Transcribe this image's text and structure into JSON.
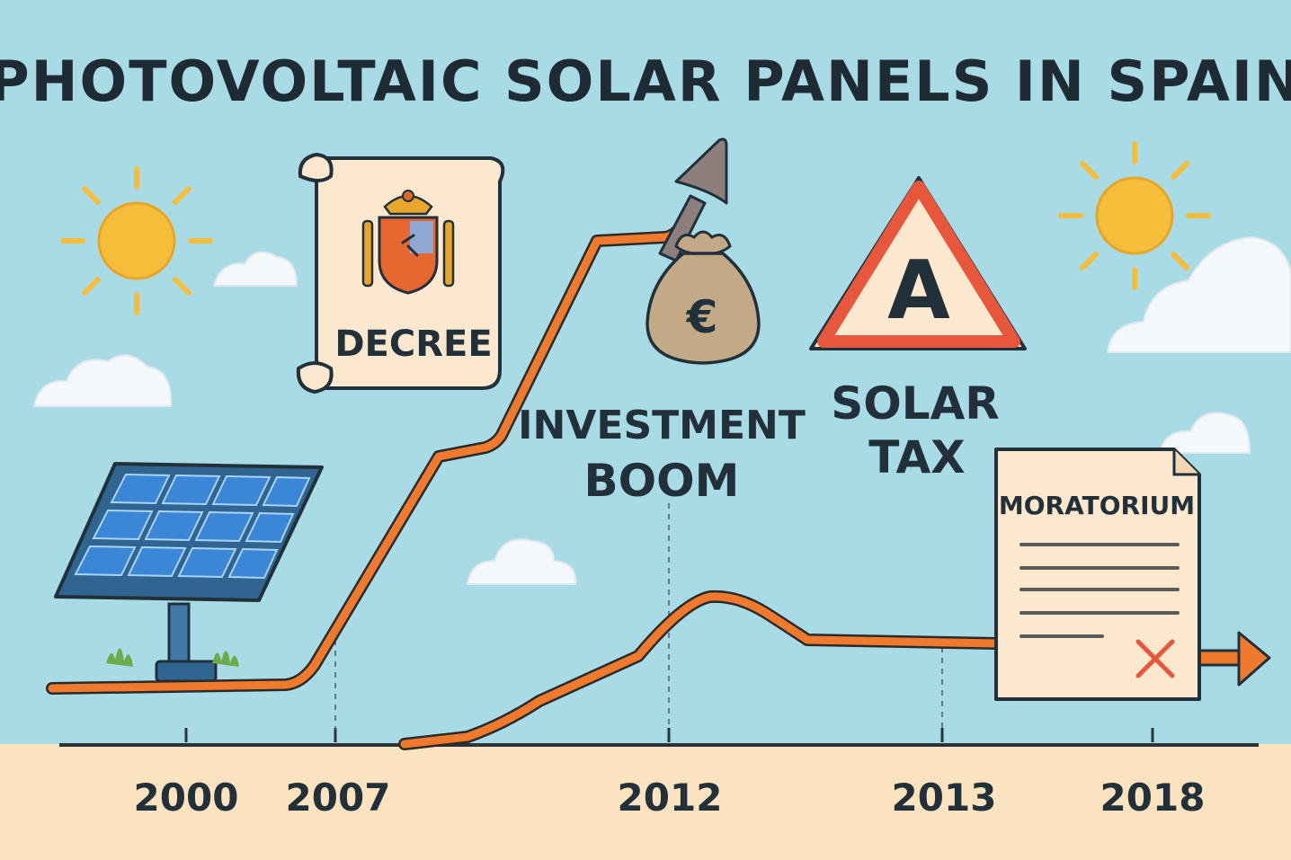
{
  "title": "PHOTOVOLTAIC SOLAR PANELS IN SPAIN",
  "decree_label": "DECREE",
  "investment_label": [
    "INVESTMENT",
    "BOOM"
  ],
  "solar_tax_label": [
    "SOLAR",
    "TAX"
  ],
  "warning_sign_letter": "A",
  "moratorium_label": "MORATORIUM",
  "currency_symbol": "€",
  "timeline_years": [
    "2000",
    "2007",
    "2012",
    "2013",
    "2018"
  ],
  "icons": [
    "sun-icon",
    "cloud-icon",
    "scroll-icon",
    "coat-of-arms-icon",
    "money-bag-icon",
    "warning-triangle-icon",
    "document-icon",
    "x-mark-icon",
    "solar-panel-icon",
    "arrow-icon"
  ],
  "colors": {
    "sky": "#a8dbe6",
    "ground": "#fbe3c0",
    "line": "#ef7a2e",
    "sun": "#f6bd3a",
    "panel": "#3b86d6",
    "warning_red": "#e8573b",
    "paper": "#fbe8cf",
    "text": "#22303a"
  }
}
